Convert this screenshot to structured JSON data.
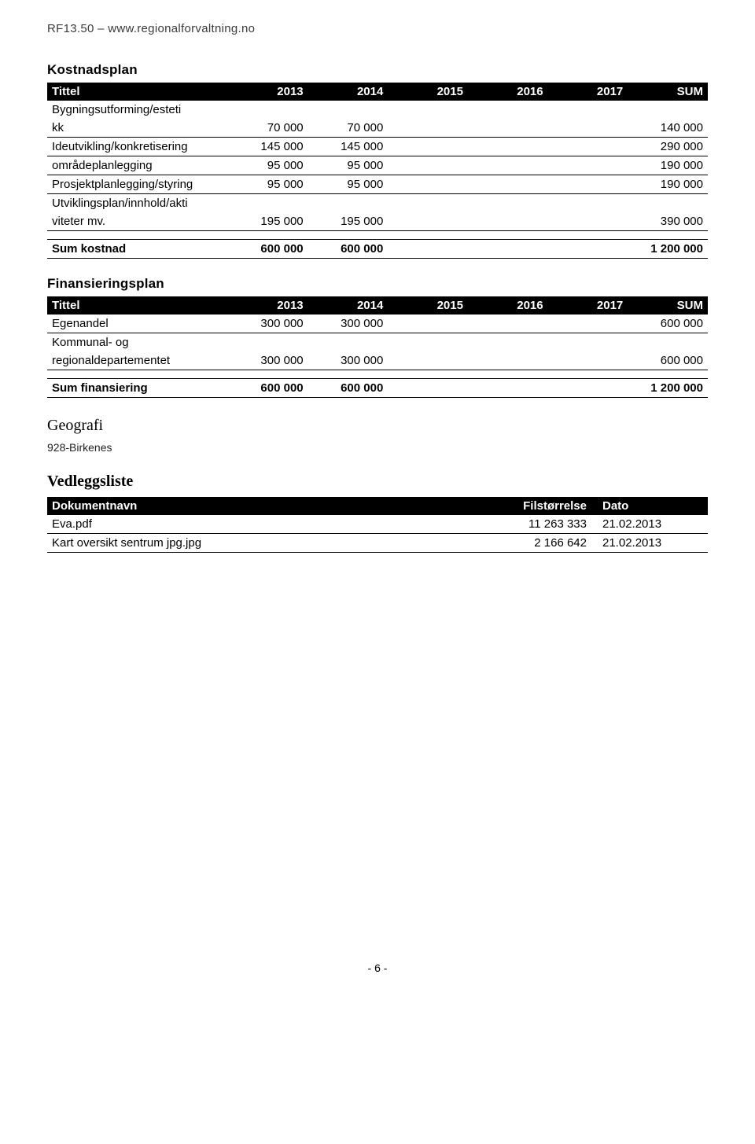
{
  "header": "RF13.50 – www.regionalforvaltning.no",
  "kostnadsplan": {
    "title": "Kostnadsplan",
    "columns": [
      "Tittel",
      "2013",
      "2014",
      "2015",
      "2016",
      "2017",
      "SUM"
    ],
    "rows": [
      {
        "label_a": "Bygningsutforming/esteti",
        "label_b": "kk",
        "v": [
          "70 000",
          "70 000",
          "",
          "",
          "",
          "140 000"
        ]
      },
      {
        "label_a": "Ideutvikling/konkretisering",
        "label_b": "",
        "v": [
          "145 000",
          "145 000",
          "",
          "",
          "",
          "290 000"
        ]
      },
      {
        "label_a": "områdeplanlegging",
        "label_b": "",
        "v": [
          "95 000",
          "95 000",
          "",
          "",
          "",
          "190 000"
        ]
      },
      {
        "label_a": "Prosjektplanlegging/styring",
        "label_b": "",
        "v": [
          "95 000",
          "95 000",
          "",
          "",
          "",
          "190 000"
        ]
      },
      {
        "label_a": "Utviklingsplan/innhold/akti",
        "label_b": "viteter mv.",
        "v": [
          "195 000",
          "195 000",
          "",
          "",
          "",
          "390 000"
        ]
      }
    ],
    "sum": {
      "label": "Sum kostnad",
      "v": [
        "600 000",
        "600 000",
        "",
        "",
        "",
        "1 200 000"
      ]
    }
  },
  "finansieringsplan": {
    "title": "Finansieringsplan",
    "columns": [
      "Tittel",
      "2013",
      "2014",
      "2015",
      "2016",
      "2017",
      "SUM"
    ],
    "rows": [
      {
        "label_a": "Egenandel",
        "label_b": "",
        "v": [
          "300 000",
          "300 000",
          "",
          "",
          "",
          "600 000"
        ]
      },
      {
        "label_a": "Kommunal- og",
        "label_b": "regionaldepartementet",
        "v": [
          "300 000",
          "300 000",
          "",
          "",
          "",
          "600 000"
        ]
      }
    ],
    "sum": {
      "label": "Sum finansiering",
      "v": [
        "600 000",
        "600 000",
        "",
        "",
        "",
        "1 200 000"
      ]
    }
  },
  "geografi": {
    "title": "Geografi",
    "value": "928-Birkenes"
  },
  "vedlegg": {
    "title": "Vedleggsliste",
    "columns": [
      "Dokumentnavn",
      "Filstørrelse",
      "Dato"
    ],
    "rows": [
      {
        "name": "Eva.pdf",
        "size": "11 263 333",
        "date": "21.02.2013"
      },
      {
        "name": "Kart oversikt sentrum jpg.jpg",
        "size": "2 166 642",
        "date": "21.02.2013"
      }
    ]
  },
  "page_number": "- 6 -"
}
